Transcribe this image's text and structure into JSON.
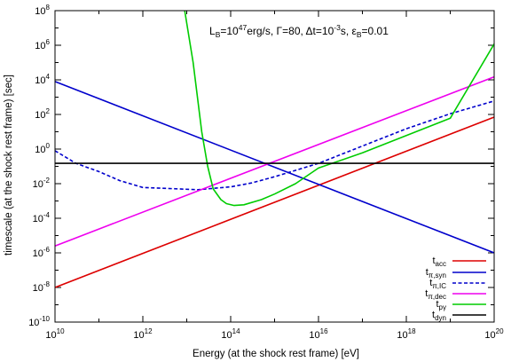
{
  "chart_data": {
    "type": "line",
    "title": "L_B=10^47 erg/s, Γ=80, Δt=10^-3 s, ε_B=0.01",
    "title_parts": {
      "lb": "L",
      "lb_sub": "B",
      "lb_eq": "=10",
      "lb_exp": "47",
      "lb_unit": "erg/s, ",
      "gamma": "Γ=80, ",
      "dt": "Δt=10",
      "dt_exp": "-3",
      "dt_unit": "s, ",
      "eps": "ε",
      "eps_sub": "B",
      "eps_val": "=0.01"
    },
    "xlabel": "Energy (at the shock rest frame) [eV]",
    "ylabel": "timescale (at the shock rest frame) [sec]",
    "x_scale": "log",
    "y_scale": "log",
    "xlim": [
      10000000000.0,
      1e+20
    ],
    "ylim": [
      1e-10,
      100000000.0
    ],
    "grid": false,
    "legend_position": "bottom-right",
    "x_ticks": [
      {
        "base": "10",
        "exp": "10",
        "value": 10000000000.0
      },
      {
        "base": "10",
        "exp": "12",
        "value": 1000000000000.0
      },
      {
        "base": "10",
        "exp": "14",
        "value": 100000000000000.0
      },
      {
        "base": "10",
        "exp": "16",
        "value": 1e+16
      },
      {
        "base": "10",
        "exp": "18",
        "value": 1e+18
      },
      {
        "base": "10",
        "exp": "20",
        "value": 1e+20
      }
    ],
    "y_ticks": [
      {
        "base": "10",
        "exp": "-10",
        "value": 1e-10
      },
      {
        "base": "10",
        "exp": "-8",
        "value": 1e-08
      },
      {
        "base": "10",
        "exp": "-6",
        "value": 1e-06
      },
      {
        "base": "10",
        "exp": "-4",
        "value": 0.0001
      },
      {
        "base": "10",
        "exp": "-2",
        "value": 0.01
      },
      {
        "base": "10",
        "exp": "0",
        "value": 1
      },
      {
        "base": "10",
        "exp": "2",
        "value": 100.0
      },
      {
        "base": "10",
        "exp": "4",
        "value": 10000.0
      },
      {
        "base": "10",
        "exp": "6",
        "value": 1000000.0
      },
      {
        "base": "10",
        "exp": "8",
        "value": 100000000.0
      }
    ],
    "series": [
      {
        "name": "t_acc",
        "label_main": "t",
        "label_sub": "acc",
        "color": "#dd0000",
        "dash": "solid",
        "points": [
          [
            10000000000.0,
            1e-08
          ],
          [
            1e+20,
            70
          ]
        ]
      },
      {
        "name": "t_π,syn",
        "label_main": "t",
        "label_sub": "π,syn",
        "color": "#0000cc",
        "dash": "solid",
        "points": [
          [
            10000000000.0,
            8000
          ],
          [
            1e+20,
            1e-06
          ]
        ]
      },
      {
        "name": "t_π,IC",
        "label_main": "t",
        "label_sub": "π,IC",
        "color": "#0000cc",
        "dash": "dashed",
        "points": [
          [
            10000000000.0,
            0.8
          ],
          [
            30000000000.0,
            0.15
          ],
          [
            100000000000.0,
            0.05
          ],
          [
            300000000000.0,
            0.015
          ],
          [
            1000000000000.0,
            0.006
          ],
          [
            18000000000000.0,
            0.0045
          ],
          [
            100000000000000.0,
            0.0065
          ],
          [
            300000000000000.0,
            0.011
          ],
          [
            1000000000000000.0,
            0.025
          ],
          [
            1e+16,
            0.15
          ],
          [
            1e+17,
            1.5
          ],
          [
            1e+18,
            15
          ],
          [
            1e+19,
            110
          ],
          [
            1e+20,
            600
          ]
        ]
      },
      {
        "name": "t_π,dec",
        "label_main": "t",
        "label_sub": "π,dec",
        "color": "#ee00ee",
        "dash": "solid",
        "points": [
          [
            10000000000.0,
            2.5e-06
          ],
          [
            1e+20,
            15000
          ]
        ]
      },
      {
        "name": "t_pγ",
        "label_main": "t",
        "label_sub": "pγ",
        "color": "#00cc00",
        "dash": "solid",
        "points": [
          [
            9000000000000.0,
            100000000.0
          ],
          [
            14000000000000.0,
            100000.0
          ],
          [
            22000000000000.0,
            10
          ],
          [
            30000000000000.0,
            0.1
          ],
          [
            40000000000000.0,
            0.005
          ],
          [
            60000000000000.0,
            0.0012
          ],
          [
            80000000000000.0,
            0.0007
          ],
          [
            120000000000000.0,
            0.00055
          ],
          [
            200000000000000.0,
            0.0006
          ],
          [
            500000000000000.0,
            0.0012
          ],
          [
            1000000000000000.0,
            0.0025
          ],
          [
            3000000000000000.0,
            0.01
          ],
          [
            1e+16,
            0.08
          ],
          [
            1e+17,
            0.6
          ],
          [
            1e+18,
            6
          ],
          [
            1e+19,
            60
          ],
          [
            1e+20,
            1200000.0
          ]
        ]
      },
      {
        "name": "t_dyn",
        "label_main": "t",
        "label_sub": "dyn",
        "color": "#000000",
        "dash": "solid",
        "points": [
          [
            10000000000.0,
            0.15
          ],
          [
            1e+20,
            0.15
          ]
        ]
      }
    ]
  }
}
